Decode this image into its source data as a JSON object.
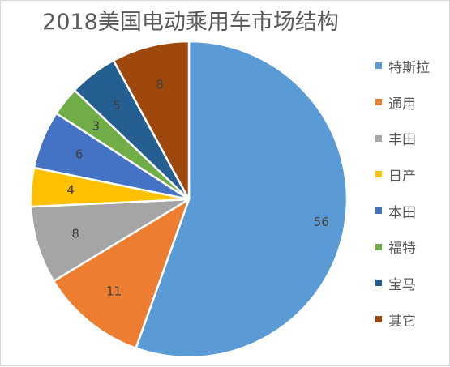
{
  "chart_data": {
    "type": "pie",
    "title": "2018美国电动乘用车市场结构",
    "categories": [
      "特斯拉",
      "通用",
      "丰田",
      "日产",
      "本田",
      "福特",
      "宝马",
      "其它"
    ],
    "values": [
      56,
      11,
      8,
      4,
      6,
      3,
      5,
      8
    ],
    "colors": [
      "#5b9bd5",
      "#ed7d31",
      "#a5a5a5",
      "#ffc000",
      "#4472c4",
      "#70ad47",
      "#255e91",
      "#9e480e"
    ],
    "start_angle_deg": 0,
    "direction": "clockwise",
    "legend_position": "right"
  }
}
